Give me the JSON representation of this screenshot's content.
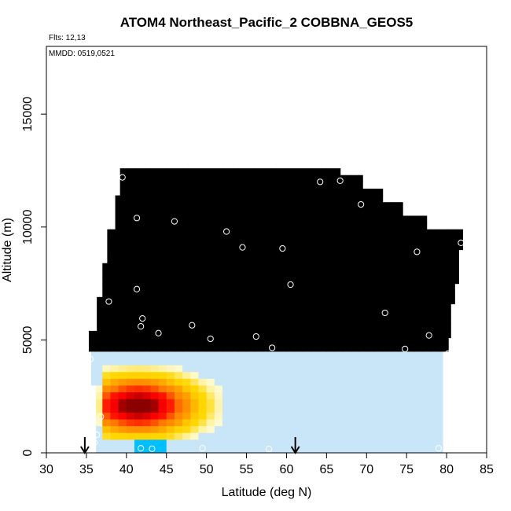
{
  "chart_data": {
    "type": "heatmap",
    "title": "ATOM4 Northeast_Pacific_2 COBBNA_GEOS5",
    "annotations": {
      "flights": "Flts: 12,13",
      "dates": "MMDD: 0519,0521"
    },
    "xlabel": "Latitude (deg N)",
    "ylabel": "Altitude (m)",
    "xlim": [
      30,
      85
    ],
    "ylim": [
      0,
      18000
    ],
    "x_ticks": [
      "30",
      "35",
      "40",
      "45",
      "50",
      "55",
      "60",
      "65",
      "70",
      "75",
      "80",
      "85"
    ],
    "y_ticks": [
      "0",
      "5000",
      "10000",
      "15000"
    ],
    "grid": false,
    "colors": {
      "very_low": "#c8e6f8",
      "low": "#00bfff",
      "mid_low": "#0000cd",
      "mid_upper": "#00008b",
      "upper": "#8a2be2",
      "high": "#ff0000",
      "very_high": "#8b0000"
    },
    "arrows_at_latitude": [
      34.8,
      61.1
    ],
    "flight_points": [
      {
        "lat": 39.5,
        "alt": 12200
      },
      {
        "lat": 64.2,
        "alt": 12000
      },
      {
        "lat": 66.7,
        "alt": 12050
      },
      {
        "lat": 69.3,
        "alt": 11000
      },
      {
        "lat": 41.3,
        "alt": 10400
      },
      {
        "lat": 46.0,
        "alt": 10250
      },
      {
        "lat": 52.5,
        "alt": 9800
      },
      {
        "lat": 54.5,
        "alt": 9100
      },
      {
        "lat": 59.5,
        "alt": 9050
      },
      {
        "lat": 76.3,
        "alt": 8900
      },
      {
        "lat": 81.8,
        "alt": 9300
      },
      {
        "lat": 41.3,
        "alt": 7250
      },
      {
        "lat": 60.5,
        "alt": 7450
      },
      {
        "lat": 37.8,
        "alt": 6700
      },
      {
        "lat": 72.3,
        "alt": 6200
      },
      {
        "lat": 42.0,
        "alt": 5950
      },
      {
        "lat": 41.8,
        "alt": 5600
      },
      {
        "lat": 48.2,
        "alt": 5650
      },
      {
        "lat": 44.0,
        "alt": 5300
      },
      {
        "lat": 50.5,
        "alt": 5050
      },
      {
        "lat": 56.2,
        "alt": 5150
      },
      {
        "lat": 58.2,
        "alt": 4650
      },
      {
        "lat": 77.8,
        "alt": 5200
      },
      {
        "lat": 74.8,
        "alt": 4600
      },
      {
        "lat": 80.2,
        "alt": 4400
      },
      {
        "lat": 35.5,
        "alt": 4150
      },
      {
        "lat": 36.8,
        "alt": 1600
      },
      {
        "lat": 36.3,
        "alt": 800
      },
      {
        "lat": 36.0,
        "alt": 450
      },
      {
        "lat": 41.8,
        "alt": 200
      },
      {
        "lat": 43.2,
        "alt": 180
      },
      {
        "lat": 49.5,
        "alt": 200
      },
      {
        "lat": 57.8,
        "alt": 170
      },
      {
        "lat": 79.0,
        "alt": 200
      }
    ]
  }
}
